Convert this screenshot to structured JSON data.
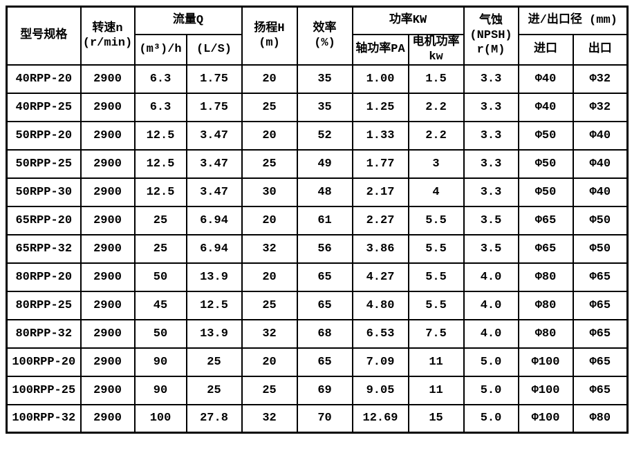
{
  "table": {
    "title_semantic": "pump-specification-table",
    "header": {
      "model": "型号规格",
      "speed_line1": "转速n",
      "speed_line2": "(r/min)",
      "flow_group": "流量Q",
      "flow_m3h": "(m³)/h",
      "flow_ls": "(L/S)",
      "head_line1": "扬程H",
      "head_line2": "(m)",
      "eff_line1": "效率",
      "eff_line2": "(%)",
      "power_group": "功率KW",
      "shaft_power": "轴功率PA",
      "motor_power_line1": "电机功率",
      "motor_power_line2": "kw",
      "npsh_line1": "气蚀",
      "npsh_line2": "(NPSH)",
      "npsh_line3": "r(M)",
      "inout_group": "进/出口径 (mm)",
      "inlet": "进口",
      "outlet": "出口"
    },
    "column_keys": [
      "model",
      "speed",
      "flow_m3h",
      "flow_ls",
      "head",
      "eff",
      "shaft",
      "motor",
      "npsh",
      "inlet",
      "outlet"
    ],
    "rows": [
      {
        "model": "40RPP-20",
        "speed": "2900",
        "flow_m3h": "6.3",
        "flow_ls": "1.75",
        "head": "20",
        "eff": "35",
        "shaft": "1.00",
        "motor": "1.5",
        "npsh": "3.3",
        "inlet": "Φ40",
        "outlet": "Φ32"
      },
      {
        "model": "40RPP-25",
        "speed": "2900",
        "flow_m3h": "6.3",
        "flow_ls": "1.75",
        "head": "25",
        "eff": "35",
        "shaft": "1.25",
        "motor": "2.2",
        "npsh": "3.3",
        "inlet": "Φ40",
        "outlet": "Φ32"
      },
      {
        "model": "50RPP-20",
        "speed": "2900",
        "flow_m3h": "12.5",
        "flow_ls": "3.47",
        "head": "20",
        "eff": "52",
        "shaft": "1.33",
        "motor": "2.2",
        "npsh": "3.3",
        "inlet": "Φ50",
        "outlet": "Φ40"
      },
      {
        "model": "50RPP-25",
        "speed": "2900",
        "flow_m3h": "12.5",
        "flow_ls": "3.47",
        "head": "25",
        "eff": "49",
        "shaft": "1.77",
        "motor": "3",
        "npsh": "3.3",
        "inlet": "Φ50",
        "outlet": "Φ40"
      },
      {
        "model": "50RPP-30",
        "speed": "2900",
        "flow_m3h": "12.5",
        "flow_ls": "3.47",
        "head": "30",
        "eff": "48",
        "shaft": "2.17",
        "motor": "4",
        "npsh": "3.3",
        "inlet": "Φ50",
        "outlet": "Φ40"
      },
      {
        "model": "65RPP-20",
        "speed": "2900",
        "flow_m3h": "25",
        "flow_ls": "6.94",
        "head": "20",
        "eff": "61",
        "shaft": "2.27",
        "motor": "5.5",
        "npsh": "3.5",
        "inlet": "Φ65",
        "outlet": "Φ50"
      },
      {
        "model": "65RPP-32",
        "speed": "2900",
        "flow_m3h": "25",
        "flow_ls": "6.94",
        "head": "32",
        "eff": "56",
        "shaft": "3.86",
        "motor": "5.5",
        "npsh": "3.5",
        "inlet": "Φ65",
        "outlet": "Φ50"
      },
      {
        "model": "80RPP-20",
        "speed": "2900",
        "flow_m3h": "50",
        "flow_ls": "13.9",
        "head": "20",
        "eff": "65",
        "shaft": "4.27",
        "motor": "5.5",
        "npsh": "4.0",
        "inlet": "Φ80",
        "outlet": "Φ65"
      },
      {
        "model": "80RPP-25",
        "speed": "2900",
        "flow_m3h": "45",
        "flow_ls": "12.5",
        "head": "25",
        "eff": "65",
        "shaft": "4.80",
        "motor": "5.5",
        "npsh": "4.0",
        "inlet": "Φ80",
        "outlet": "Φ65"
      },
      {
        "model": "80RPP-32",
        "speed": "2900",
        "flow_m3h": "50",
        "flow_ls": "13.9",
        "head": "32",
        "eff": "68",
        "shaft": "6.53",
        "motor": "7.5",
        "npsh": "4.0",
        "inlet": "Φ80",
        "outlet": "Φ65"
      },
      {
        "model": "100RPP-20",
        "speed": "2900",
        "flow_m3h": "90",
        "flow_ls": "25",
        "head": "20",
        "eff": "65",
        "shaft": "7.09",
        "motor": "11",
        "npsh": "5.0",
        "inlet": "Φ100",
        "outlet": "Φ65"
      },
      {
        "model": "100RPP-25",
        "speed": "2900",
        "flow_m3h": "90",
        "flow_ls": "25",
        "head": "25",
        "eff": "69",
        "shaft": "9.05",
        "motor": "11",
        "npsh": "5.0",
        "inlet": "Φ100",
        "outlet": "Φ65"
      },
      {
        "model": "100RPP-32",
        "speed": "2900",
        "flow_m3h": "100",
        "flow_ls": "27.8",
        "head": "32",
        "eff": "70",
        "shaft": "12.69",
        "motor": "15",
        "npsh": "5.0",
        "inlet": "Φ100",
        "outlet": "Φ80"
      }
    ],
    "colors": {
      "border": "#000000",
      "text": "#000000",
      "background": "#ffffff"
    }
  }
}
